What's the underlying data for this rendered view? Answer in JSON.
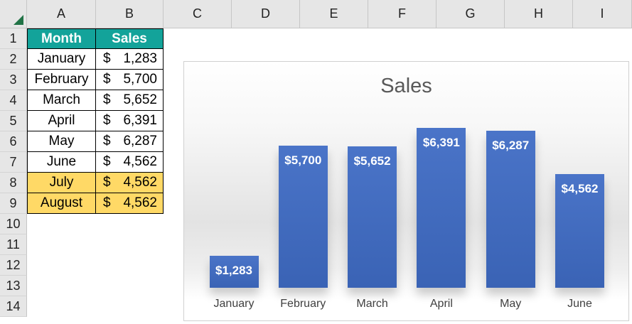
{
  "sheet": {
    "columns": [
      "A",
      "B",
      "C",
      "D",
      "E",
      "F",
      "G",
      "H",
      "I"
    ],
    "rows": [
      "1",
      "2",
      "3",
      "4",
      "5",
      "6",
      "7",
      "8",
      "9",
      "10",
      "11",
      "12",
      "13",
      "14"
    ],
    "table": {
      "headers": {
        "month": "Month",
        "sales": "Sales"
      },
      "currency": "$",
      "rows": [
        {
          "month": "January",
          "sales": "1,283"
        },
        {
          "month": "February",
          "sales": "5,700"
        },
        {
          "month": "March",
          "sales": "5,652"
        },
        {
          "month": "April",
          "sales": "6,391"
        },
        {
          "month": "May",
          "sales": "6,287"
        },
        {
          "month": "June",
          "sales": "4,562"
        },
        {
          "month": "July",
          "sales": "4,562"
        },
        {
          "month": "August",
          "sales": "4,562"
        }
      ],
      "highlighted_rows": [
        6,
        7
      ]
    }
  },
  "colors": {
    "header_fill": "#13a39a",
    "highlight_fill": "#ffd966",
    "bar": "#4472c4"
  },
  "chart_data": {
    "type": "bar",
    "title": "Sales",
    "categories": [
      "January",
      "February",
      "March",
      "April",
      "May",
      "June"
    ],
    "values": [
      1283,
      5700,
      5652,
      6391,
      6287,
      4562
    ],
    "data_labels": [
      "$1,283",
      "$5,700",
      "$5,652",
      "$6,391",
      "$6,287",
      "$4,562"
    ],
    "ylim": [
      0,
      7000
    ],
    "grid": false,
    "legend": "none"
  }
}
